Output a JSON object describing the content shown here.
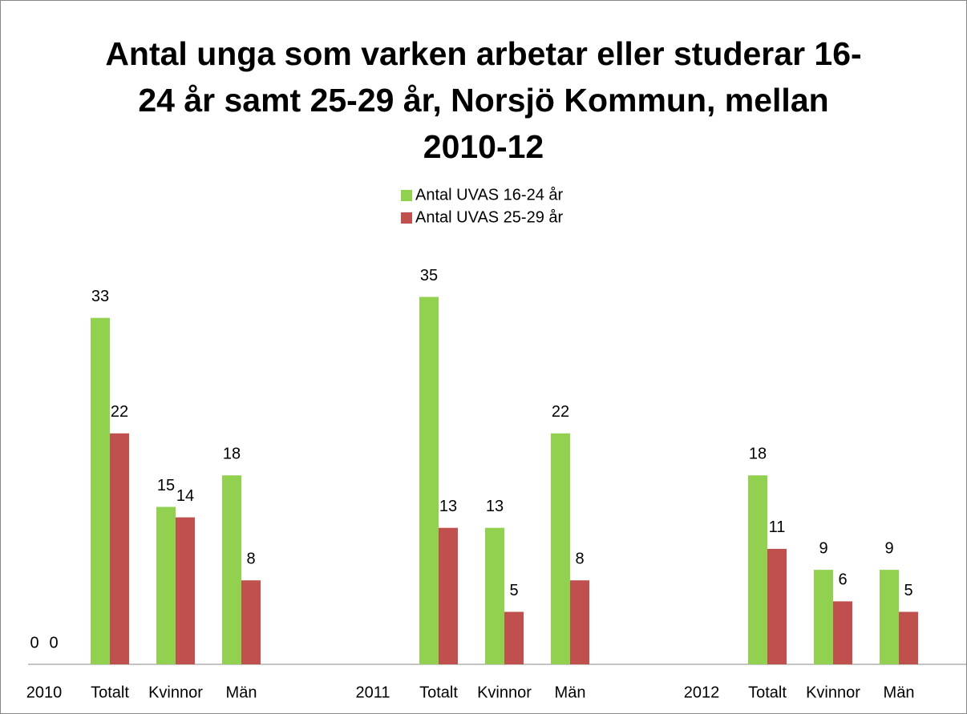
{
  "chart_data": {
    "type": "bar",
    "title": "Antal unga som varken arbetar eller studerar 16-24 år samt 25-29 år, Norsjö Kommun, mellan 2010-12",
    "categories": [
      "2010",
      "Totalt",
      "Kvinnor",
      "Män",
      null,
      "2011",
      "Totalt",
      "Kvinnor",
      "Män",
      null,
      "2012",
      "Totalt",
      "Kvinnor",
      "Män"
    ],
    "series": [
      {
        "name": "Antal UVAS 16-24 år",
        "color": "#92d050",
        "values": [
          0,
          33,
          15,
          18,
          null,
          null,
          35,
          13,
          22,
          null,
          null,
          18,
          9,
          9
        ]
      },
      {
        "name": "Antal UVAS 25-29 år",
        "color": "#c0504d",
        "values": [
          0,
          22,
          14,
          8,
          null,
          null,
          13,
          5,
          8,
          null,
          null,
          11,
          6,
          5
        ]
      }
    ],
    "ylim": [
      0,
      40
    ],
    "legend": "top"
  }
}
